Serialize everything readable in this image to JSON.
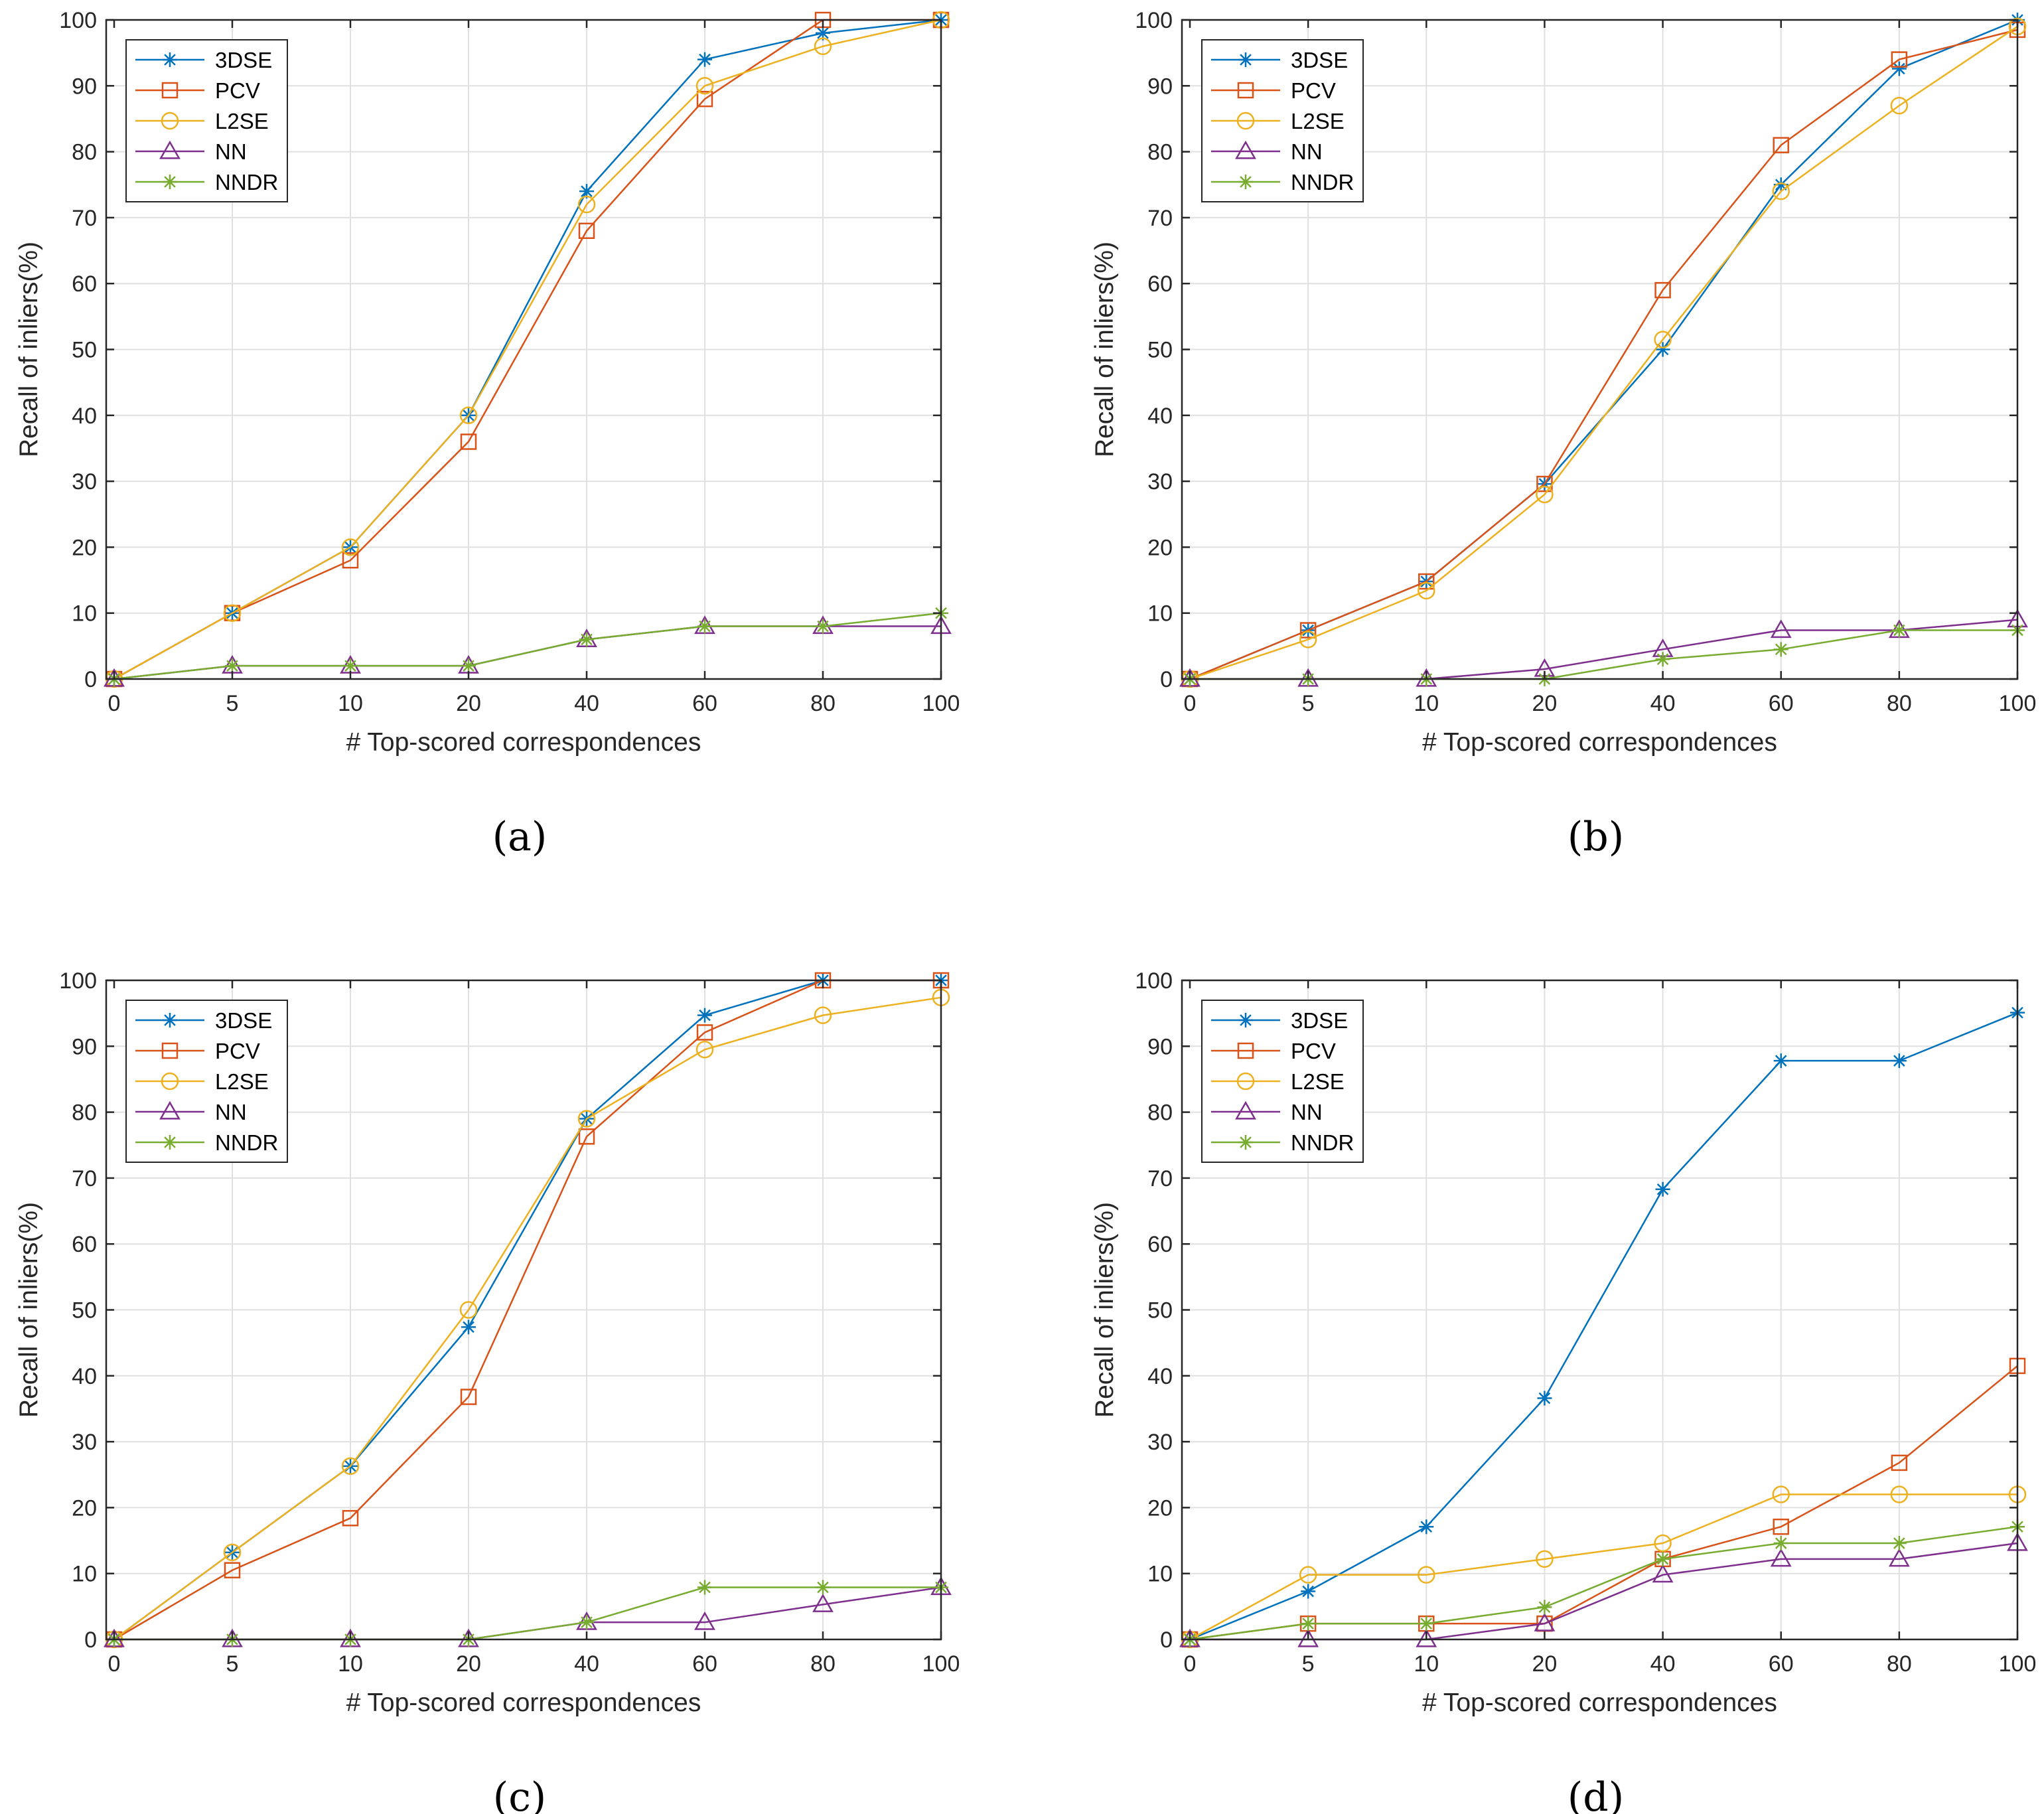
{
  "chart_data": [
    {
      "type": "line",
      "caption": "(a)",
      "categories": [
        "0",
        "5",
        "10",
        "20",
        "40",
        "60",
        "80",
        "100"
      ],
      "xlabel": "# Top-scored correspondences",
      "ylabel": "Recall of inliers(%)",
      "ylim": [
        0,
        100
      ],
      "yticks": [
        0,
        10,
        20,
        30,
        40,
        50,
        60,
        70,
        80,
        90,
        100
      ],
      "grid": true,
      "legend_position": "top-left",
      "series": [
        {
          "name": "3DSE",
          "color": "#0072BD",
          "marker": "asterisk",
          "values": [
            0,
            10,
            20,
            40,
            74,
            94,
            98,
            100
          ]
        },
        {
          "name": "PCV",
          "color": "#D95319",
          "marker": "square",
          "values": [
            0,
            10,
            18,
            36,
            68,
            88,
            100,
            100
          ]
        },
        {
          "name": "L2SE",
          "color": "#EDB120",
          "marker": "circle",
          "values": [
            0,
            10,
            20,
            40,
            72,
            90,
            96,
            100
          ]
        },
        {
          "name": "NN",
          "color": "#7E2F8E",
          "marker": "triangle",
          "values": [
            0,
            2,
            2,
            2,
            6,
            8,
            8,
            8
          ]
        },
        {
          "name": "NNDR",
          "color": "#77AC30",
          "marker": "asterisk",
          "values": [
            0,
            2,
            2,
            2,
            6,
            8,
            8,
            10
          ]
        }
      ]
    },
    {
      "type": "line",
      "caption": "(b)",
      "categories": [
        "0",
        "5",
        "10",
        "20",
        "40",
        "60",
        "80",
        "100"
      ],
      "xlabel": "# Top-scored correspondences",
      "ylabel": "Recall of inliers(%)",
      "ylim": [
        0,
        100
      ],
      "yticks": [
        0,
        10,
        20,
        30,
        40,
        50,
        60,
        70,
        80,
        90,
        100
      ],
      "grid": true,
      "legend_position": "top-left",
      "series": [
        {
          "name": "3DSE",
          "color": "#0072BD",
          "marker": "asterisk",
          "values": [
            0,
            7.4,
            14.8,
            29.6,
            50,
            75,
            92.6,
            100
          ]
        },
        {
          "name": "PCV",
          "color": "#D95319",
          "marker": "square",
          "values": [
            0,
            7.4,
            14.8,
            29.6,
            59,
            81,
            94,
            98.5
          ]
        },
        {
          "name": "L2SE",
          "color": "#EDB120",
          "marker": "circle",
          "values": [
            0,
            6,
            13.4,
            28,
            51.5,
            74,
            87,
            99
          ]
        },
        {
          "name": "NN",
          "color": "#7E2F8E",
          "marker": "triangle",
          "values": [
            0,
            0,
            0,
            1.5,
            4.5,
            7.4,
            7.4,
            9
          ]
        },
        {
          "name": "NNDR",
          "color": "#77AC30",
          "marker": "asterisk",
          "values": [
            0,
            0,
            0,
            0,
            3,
            4.5,
            7.4,
            7.4
          ]
        }
      ]
    },
    {
      "type": "line",
      "caption": "(c)",
      "categories": [
        "0",
        "5",
        "10",
        "20",
        "40",
        "60",
        "80",
        "100"
      ],
      "xlabel": "# Top-scored correspondences",
      "ylabel": "Recall of inliers(%)",
      "ylim": [
        0,
        100
      ],
      "yticks": [
        0,
        10,
        20,
        30,
        40,
        50,
        60,
        70,
        80,
        90,
        100
      ],
      "grid": true,
      "legend_position": "top-left",
      "series": [
        {
          "name": "3DSE",
          "color": "#0072BD",
          "marker": "asterisk",
          "values": [
            0,
            13.2,
            26.3,
            47.4,
            79,
            94.7,
            100,
            100
          ]
        },
        {
          "name": "PCV",
          "color": "#D95319",
          "marker": "square",
          "values": [
            0,
            10.5,
            18.4,
            36.8,
            76.3,
            92.1,
            100,
            100
          ]
        },
        {
          "name": "L2SE",
          "color": "#EDB120",
          "marker": "circle",
          "values": [
            0,
            13.2,
            26.3,
            50,
            79,
            89.5,
            94.7,
            97.4
          ]
        },
        {
          "name": "NN",
          "color": "#7E2F8E",
          "marker": "triangle",
          "values": [
            0,
            0,
            0,
            0,
            2.6,
            2.6,
            5.3,
            7.9
          ]
        },
        {
          "name": "NNDR",
          "color": "#77AC30",
          "marker": "asterisk",
          "values": [
            0,
            0,
            0,
            0,
            2.6,
            7.9,
            7.9,
            7.9
          ]
        }
      ]
    },
    {
      "type": "line",
      "caption": "(d)",
      "categories": [
        "0",
        "5",
        "10",
        "20",
        "40",
        "60",
        "80",
        "100"
      ],
      "xlabel": "# Top-scored correspondences",
      "ylabel": "Recall of inliers(%)",
      "ylim": [
        0,
        100
      ],
      "yticks": [
        0,
        10,
        20,
        30,
        40,
        50,
        60,
        70,
        80,
        90,
        100
      ],
      "grid": true,
      "legend_position": "top-left",
      "series": [
        {
          "name": "3DSE",
          "color": "#0072BD",
          "marker": "asterisk",
          "values": [
            0,
            7.3,
            17.1,
            36.6,
            68.3,
            87.8,
            87.8,
            95.1
          ]
        },
        {
          "name": "PCV",
          "color": "#D95319",
          "marker": "square",
          "values": [
            0,
            2.4,
            2.4,
            2.4,
            12.2,
            17.1,
            26.8,
            41.5
          ]
        },
        {
          "name": "L2SE",
          "color": "#EDB120",
          "marker": "circle",
          "values": [
            0,
            9.8,
            9.8,
            12.2,
            14.6,
            22,
            22,
            22
          ]
        },
        {
          "name": "NN",
          "color": "#7E2F8E",
          "marker": "triangle",
          "values": [
            0,
            0,
            0,
            2.4,
            9.8,
            12.2,
            12.2,
            14.6
          ]
        },
        {
          "name": "NNDR",
          "color": "#77AC30",
          "marker": "asterisk",
          "values": [
            0,
            2.4,
            2.4,
            4.9,
            12.2,
            14.6,
            14.6,
            17.1
          ]
        }
      ]
    }
  ]
}
